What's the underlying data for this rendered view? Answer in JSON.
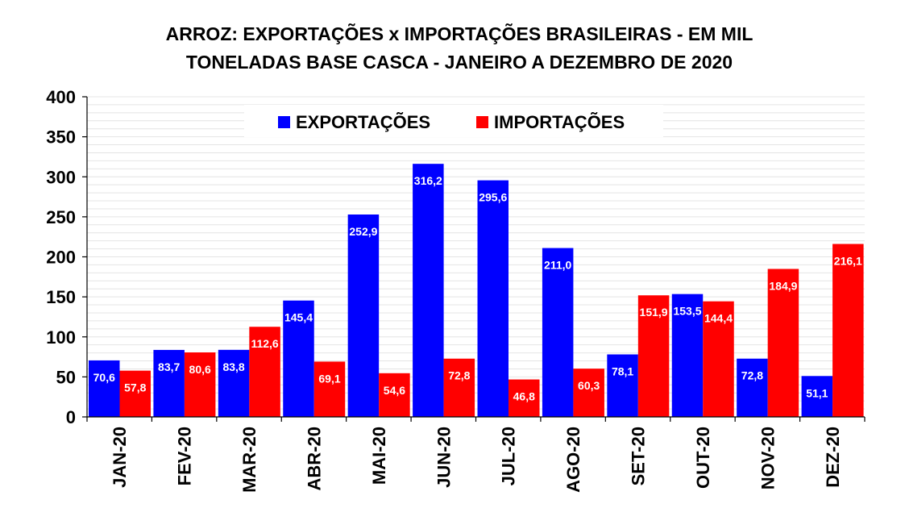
{
  "chart_data": {
    "type": "bar",
    "title_lines": [
      "ARROZ: EXPORTAÇÕES x IMPORTAÇÕES BRASILEIRAS - EM MIL",
      "TONELADAS BASE CASCA - JANEIRO A DEZEMBRO DE 2020"
    ],
    "categories": [
      "JAN-20",
      "FEV-20",
      "MAR-20",
      "ABR-20",
      "MAI-20",
      "JUN-20",
      "JUL-20",
      "AGO-20",
      "SET-20",
      "OUT-20",
      "NOV-20",
      "DEZ-20"
    ],
    "series": [
      {
        "name": "EXPORTAÇÕES",
        "color": "#0000ff",
        "values": [
          70.6,
          83.7,
          83.8,
          145.4,
          252.9,
          316.2,
          295.6,
          211.0,
          78.1,
          153.5,
          72.8,
          51.1
        ],
        "labels": [
          "70,6",
          "83,7",
          "83,8",
          "145,4",
          "252,9",
          "316,2",
          "295,6",
          "211,0",
          "78,1",
          "153,5",
          "72,8",
          "51,1"
        ]
      },
      {
        "name": "IMPORTAÇÕES",
        "color": "#ff0000",
        "values": [
          57.8,
          80.6,
          112.6,
          69.1,
          54.6,
          72.8,
          46.8,
          60.3,
          151.9,
          144.4,
          184.9,
          216.1
        ],
        "labels": [
          "57,8",
          "80,6",
          "112,6",
          "69,1",
          "54,6",
          "72,8",
          "46,8",
          "60,3",
          "151,9",
          "144,4",
          "184,9",
          "216,1"
        ]
      }
    ],
    "ylim": [
      0,
      400
    ],
    "yticks": [
      0,
      50,
      100,
      150,
      200,
      250,
      300,
      350,
      400
    ],
    "legend_position": "top-center",
    "grid": true
  }
}
